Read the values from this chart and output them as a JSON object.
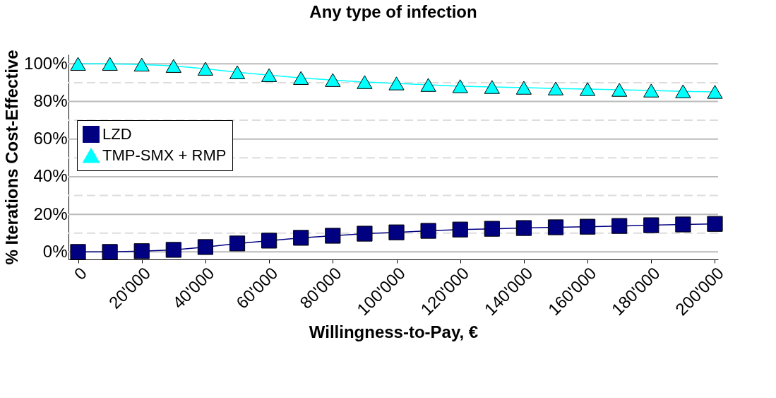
{
  "chart_data": {
    "type": "line",
    "title": "Any type of infection",
    "xlabel": "Willingness-to-Pay, €",
    "ylabel": "% Iterations Cost-Effective",
    "x": [
      0,
      10000,
      20000,
      30000,
      40000,
      50000,
      60000,
      70000,
      80000,
      90000,
      100000,
      110000,
      120000,
      130000,
      140000,
      150000,
      160000,
      170000,
      180000,
      190000,
      200000
    ],
    "series": [
      {
        "name": "LZD",
        "color": "#000080",
        "marker": "square",
        "values": [
          0,
          0,
          0.4,
          1.1,
          2.6,
          4.5,
          6,
          7.5,
          8.6,
          9.7,
          10.4,
          11.2,
          11.9,
          12.3,
          12.7,
          13.1,
          13.4,
          13.8,
          14.2,
          14.6,
          14.9
        ]
      },
      {
        "name": "TMP-SMX + RMP",
        "color": "#00ffff",
        "marker": "triangle",
        "values": [
          100,
          100,
          99.6,
          98.9,
          97.4,
          95.5,
          94,
          92.5,
          91.4,
          90.3,
          89.6,
          88.8,
          88.1,
          87.7,
          87.3,
          86.9,
          86.6,
          86.2,
          85.8,
          85.4,
          85.1
        ]
      }
    ],
    "xlim": [
      -3000,
      201000
    ],
    "xticks": [
      {
        "value": 0,
        "label": "0"
      },
      {
        "value": 20000,
        "label": "20'000"
      },
      {
        "value": 40000,
        "label": "40'000"
      },
      {
        "value": 60000,
        "label": "60'000"
      },
      {
        "value": 80000,
        "label": "80'000"
      },
      {
        "value": 100000,
        "label": "100'000"
      },
      {
        "value": 120000,
        "label": "120'000"
      },
      {
        "value": 140000,
        "label": "140'000"
      },
      {
        "value": 160000,
        "label": "160'000"
      },
      {
        "value": 180000,
        "label": "180'000"
      },
      {
        "value": 200000,
        "label": "200'000"
      }
    ],
    "ylim": [
      -4,
      105
    ],
    "yticks": [
      {
        "value": 0,
        "label": "0%"
      },
      {
        "value": 10,
        "label": null
      },
      {
        "value": 20,
        "label": "20%"
      },
      {
        "value": 30,
        "label": null
      },
      {
        "value": 40,
        "label": "40%"
      },
      {
        "value": 50,
        "label": null
      },
      {
        "value": 60,
        "label": "60%"
      },
      {
        "value": 70,
        "label": null
      },
      {
        "value": 80,
        "label": "80%"
      },
      {
        "value": 90,
        "label": null
      },
      {
        "value": 100,
        "label": "100%"
      }
    ],
    "grid": "y",
    "legend": "top left",
    "line_style": "solid"
  }
}
